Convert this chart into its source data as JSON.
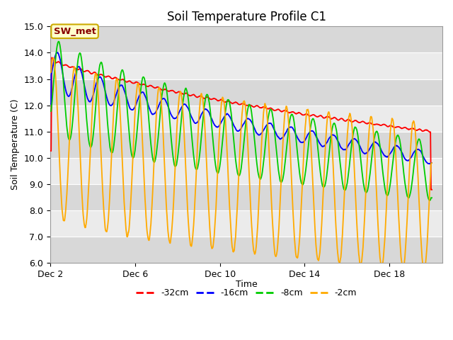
{
  "title": "Soil Temperature Profile C1",
  "xlabel": "Time",
  "ylabel": "Soil Temperature (C)",
  "ylim": [
    6.0,
    15.0
  ],
  "yticks": [
    6.0,
    7.0,
    8.0,
    9.0,
    10.0,
    11.0,
    12.0,
    13.0,
    14.0,
    15.0
  ],
  "xtick_labels": [
    "Dec 2",
    "Dec 6",
    "Dec 10",
    "Dec 14",
    "Dec 18"
  ],
  "xtick_positions": [
    0,
    4,
    8,
    12,
    16
  ],
  "xlim": [
    0,
    18.5
  ],
  "legend_labels": [
    "-32cm",
    "-16cm",
    "-8cm",
    "-2cm"
  ],
  "line_colors": [
    "#ff0000",
    "#0000ff",
    "#00cc00",
    "#ffaa00"
  ],
  "annotation_text": "SW_met",
  "annotation_bgcolor": "#ffffcc",
  "annotation_edgecolor": "#ccaa00",
  "n_days": 18,
  "background_color": "#ffffff",
  "plot_bg_color": "#ebebeb",
  "stripe_color": "#d8d8d8",
  "grid_color": "#ffffff",
  "title_fontsize": 12,
  "label_fontsize": 9,
  "tick_fontsize": 9,
  "legend_fontsize": 9
}
